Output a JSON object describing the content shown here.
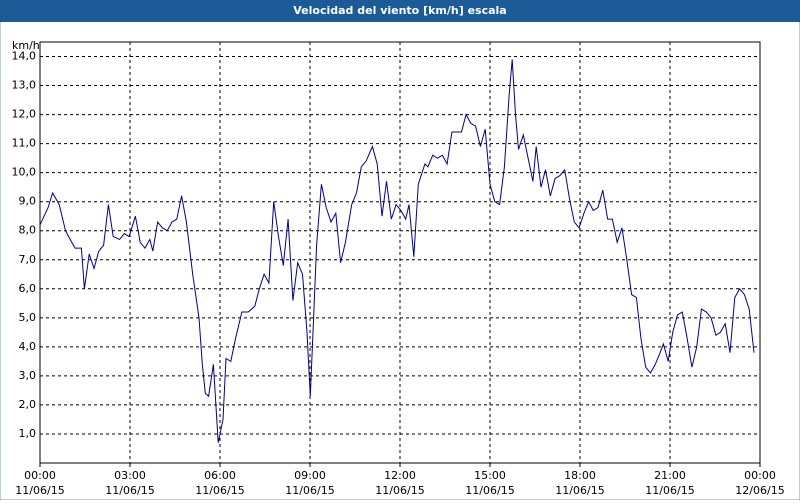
{
  "chart_data": {
    "type": "line",
    "title": "Velocidad del viento [km/h] escala",
    "ylabel": "km/h",
    "color": "#00008b",
    "grid": true,
    "xlim": [
      0,
      24
    ],
    "ylim": [
      0,
      14.5
    ],
    "yticks": [
      {
        "value": 1,
        "label": "1,0"
      },
      {
        "value": 2,
        "label": "2,0"
      },
      {
        "value": 3,
        "label": "3,0"
      },
      {
        "value": 4,
        "label": "4,0"
      },
      {
        "value": 5,
        "label": "5,0"
      },
      {
        "value": 6,
        "label": "6,0"
      },
      {
        "value": 7,
        "label": "7,0"
      },
      {
        "value": 8,
        "label": "8,0"
      },
      {
        "value": 9,
        "label": "9,0"
      },
      {
        "value": 10,
        "label": "10,0"
      },
      {
        "value": 11,
        "label": "11,0"
      },
      {
        "value": 12,
        "label": "12,0"
      },
      {
        "value": 13,
        "label": "13,0"
      },
      {
        "value": 14,
        "label": "14,0"
      }
    ],
    "xticks": [
      {
        "value": 0,
        "label": "00:00",
        "date": "11/06/15"
      },
      {
        "value": 3,
        "label": "03:00",
        "date": "11/06/15"
      },
      {
        "value": 6,
        "label": "06:00",
        "date": "11/06/15"
      },
      {
        "value": 9,
        "label": "09:00",
        "date": "11/06/15"
      },
      {
        "value": 12,
        "label": "12:00",
        "date": "11/06/15"
      },
      {
        "value": 15,
        "label": "15:00",
        "date": "11/06/15"
      },
      {
        "value": 18,
        "label": "18:00",
        "date": "11/06/15"
      },
      {
        "value": 21,
        "label": "21:00",
        "date": "11/06/15"
      },
      {
        "value": 24,
        "label": "00:00",
        "date": "12/06/15"
      }
    ],
    "x": [
      0,
      0.27,
      0.42,
      0.64,
      0.85,
      1.06,
      1.17,
      1.38,
      1.48,
      1.64,
      1.8,
      1.96,
      2.12,
      2.28,
      2.44,
      2.65,
      2.81,
      2.97,
      3.18,
      3.34,
      3.5,
      3.66,
      3.76,
      3.92,
      4.08,
      4.24,
      4.4,
      4.56,
      4.72,
      4.88,
      5.09,
      5.3,
      5.41,
      5.51,
      5.62,
      5.78,
      5.94,
      6.1,
      6.2,
      6.36,
      6.52,
      6.73,
      6.94,
      7.16,
      7.31,
      7.47,
      7.63,
      7.79,
      7.95,
      8.11,
      8.27,
      8.43,
      8.59,
      8.75,
      8.9,
      9.01,
      9.12,
      9.22,
      9.38,
      9.54,
      9.7,
      9.86,
      10.02,
      10.18,
      10.39,
      10.55,
      10.71,
      10.87,
      11.08,
      11.24,
      11.4,
      11.55,
      11.71,
      11.87,
      12.03,
      12.19,
      12.3,
      12.46,
      12.61,
      12.83,
      12.93,
      13.09,
      13.25,
      13.41,
      13.57,
      13.73,
      13.89,
      14.05,
      14.2,
      14.36,
      14.52,
      14.68,
      14.84,
      15.0,
      15.16,
      15.32,
      15.48,
      15.64,
      15.74,
      15.85,
      15.95,
      16.11,
      16.27,
      16.43,
      16.54,
      16.7,
      16.85,
      17.01,
      17.17,
      17.33,
      17.49,
      17.65,
      17.81,
      17.97,
      18.13,
      18.29,
      18.44,
      18.6,
      18.76,
      18.92,
      19.08,
      19.24,
      19.4,
      19.56,
      19.72,
      19.88,
      20.03,
      20.19,
      20.35,
      20.51,
      20.67,
      20.78,
      20.94,
      21.09,
      21.25,
      21.41,
      21.57,
      21.73,
      21.89,
      22.05,
      22.21,
      22.37,
      22.53,
      22.68,
      22.84,
      23.0,
      23.16,
      23.32,
      23.48,
      23.64,
      23.8
    ],
    "values": [
      8.2,
      8.8,
      9.3,
      8.9,
      8.0,
      7.6,
      7.4,
      7.4,
      6.0,
      7.2,
      6.7,
      7.3,
      7.5,
      8.9,
      7.8,
      7.7,
      7.9,
      7.8,
      8.5,
      7.6,
      7.4,
      7.7,
      7.3,
      8.3,
      8.1,
      8.0,
      8.3,
      8.4,
      9.2,
      8.3,
      6.5,
      5.0,
      3.4,
      2.4,
      2.3,
      3.4,
      0.7,
      1.5,
      3.6,
      3.5,
      4.3,
      5.2,
      5.2,
      5.4,
      6.0,
      6.5,
      6.2,
      9.0,
      7.8,
      6.8,
      8.4,
      5.6,
      6.9,
      6.5,
      4.5,
      2.3,
      5.0,
      7.5,
      9.6,
      8.8,
      8.3,
      8.6,
      6.9,
      7.6,
      8.9,
      9.3,
      10.2,
      10.4,
      10.9,
      10.3,
      8.5,
      9.7,
      8.4,
      8.9,
      8.7,
      8.4,
      8.9,
      7.1,
      9.6,
      10.3,
      10.2,
      10.6,
      10.5,
      10.6,
      10.3,
      11.4,
      11.4,
      11.4,
      12.0,
      11.7,
      11.6,
      10.9,
      11.5,
      9.6,
      9.0,
      8.9,
      10.2,
      12.7,
      13.9,
      12.0,
      10.8,
      11.3,
      10.5,
      9.7,
      10.9,
      9.5,
      10.1,
      9.2,
      9.8,
      9.9,
      10.1,
      9.1,
      8.3,
      8.1,
      8.6,
      9.0,
      8.7,
      8.8,
      9.4,
      8.4,
      8.4,
      7.6,
      8.1,
      7.0,
      5.8,
      5.7,
      4.3,
      3.3,
      3.1,
      3.4,
      3.8,
      4.1,
      3.5,
      4.5,
      5.1,
      5.2,
      4.3,
      3.3,
      4.0,
      5.3,
      5.2,
      5.0,
      4.4,
      4.5,
      4.8,
      3.8,
      5.7,
      6.0,
      5.8,
      5.3,
      3.8
    ]
  }
}
